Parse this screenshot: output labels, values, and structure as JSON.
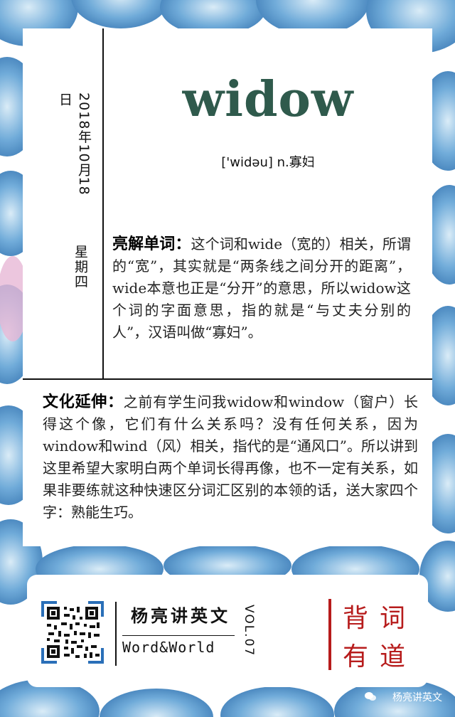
{
  "date": "2018年10月18日",
  "weekday": "星期四",
  "word": "widow",
  "phonetic": "['widəu]  n.寡妇",
  "explain": {
    "heading": "亮解单词：",
    "text": "这个词和wide（宽的）相关，所谓的“宽”，其实就是“两条线之间分开的距离”，wide本意也正是“分开”的意思，所以widow这个词的字面意思，指的就是“与丈夫分别的人”，汉语叫做“寡妇”。"
  },
  "culture": {
    "heading": "文化延伸：",
    "text": "之前有学生问我widow和window（窗户）长得这个像，它们有什么关系吗？没有任何关系，因为window和wind（风）相关，指代的是“通风口”。所以讲到这里希望大家明白两个单词长得再像，也不一定有关系，如果非要练就这种快速区分词汇区别的本领的话，送大家四个字：熟能生巧。"
  },
  "footer": {
    "brand_cn": "杨亮讲英文",
    "brand_en": "Word&World",
    "vol": "VOL.07",
    "slogan": [
      "背",
      "词",
      "有",
      "道"
    ]
  },
  "watermark": "杨亮讲英文",
  "colors": {
    "word": "#2f5a4c",
    "accent_red": "#b71c1c",
    "leaf_blue": "#3f86c4"
  }
}
